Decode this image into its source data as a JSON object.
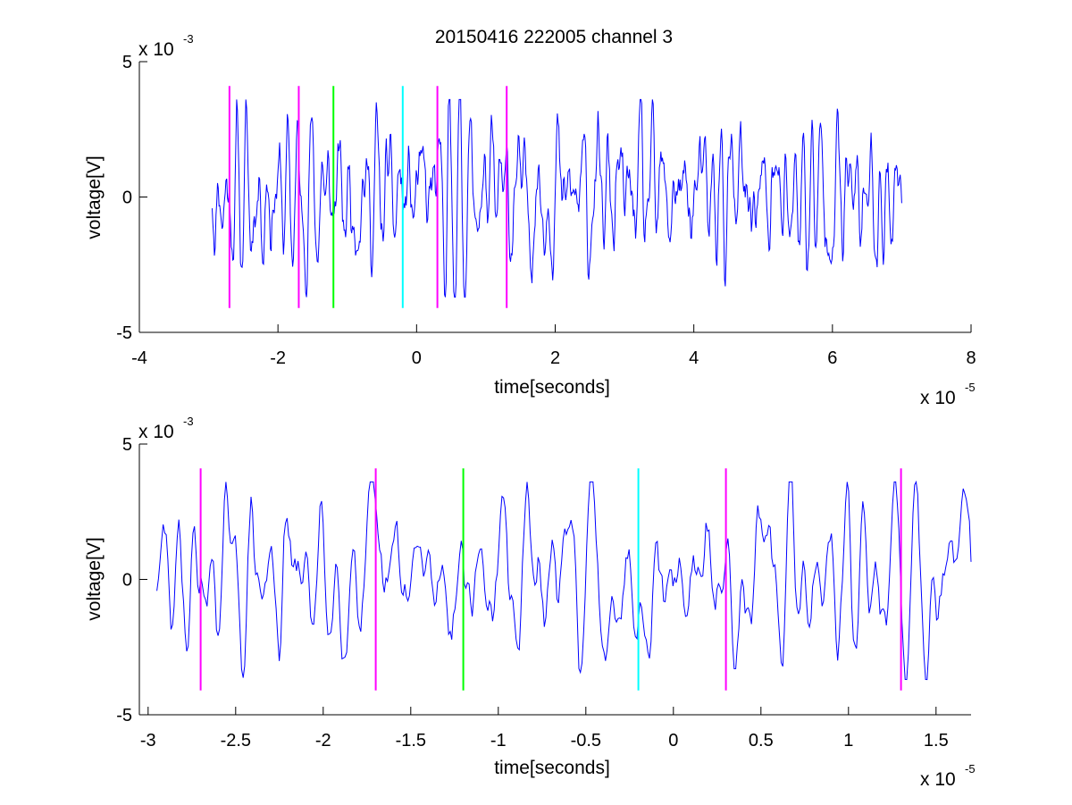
{
  "title": "20150416 222005 channel 3",
  "chart_data": [
    {
      "type": "line",
      "title": "20150416 222005 channel 3",
      "xlabel": "time[seconds]",
      "ylabel": "voltage[V]",
      "x_multiplier_label": "x 10",
      "x_multiplier_exp": "-5",
      "y_multiplier_label": "x 10",
      "y_multiplier_exp": "-3",
      "xlim": [
        -4,
        8
      ],
      "ylim": [
        -5,
        5
      ],
      "xticks": [
        "-4",
        "-2",
        "0",
        "2",
        "4",
        "6",
        "8"
      ],
      "xtick_values": [
        -4,
        -2,
        0,
        2,
        4,
        6,
        8
      ],
      "yticks": [
        "-5",
        "0",
        "5"
      ],
      "ytick_values": [
        -5,
        0,
        5
      ],
      "grid": false,
      "series": [
        {
          "color": "#0000ff",
          "x_start": -2.95,
          "x_end": 7.0,
          "points": 900,
          "seed": 11,
          "amp": 1.05
        }
      ],
      "markers": [
        {
          "x": -2.7,
          "color": "#ff00ff",
          "ymin": -4.1,
          "ymax": 4.1
        },
        {
          "x": -1.7,
          "color": "#ff00ff",
          "ymin": -4.1,
          "ymax": 4.1
        },
        {
          "x": -1.2,
          "color": "#00ff00",
          "ymin": -4.1,
          "ymax": 4.1
        },
        {
          "x": -0.2,
          "color": "#00ffff",
          "ymin": -4.1,
          "ymax": 4.1
        },
        {
          "x": 0.3,
          "color": "#ff00ff",
          "ymin": -4.1,
          "ymax": 4.1
        },
        {
          "x": 1.3,
          "color": "#ff00ff",
          "ymin": -4.1,
          "ymax": 4.1
        }
      ]
    },
    {
      "type": "line",
      "xlabel": "time[seconds]",
      "ylabel": "voltage[V]",
      "x_multiplier_label": "x 10",
      "x_multiplier_exp": "-5",
      "y_multiplier_label": "x 10",
      "y_multiplier_exp": "-3",
      "xlim": [
        -3.05,
        1.7
      ],
      "ylim": [
        -5,
        5
      ],
      "xticks": [
        "-3",
        "-2.5",
        "-2",
        "-1.5",
        "-1",
        "-0.5",
        "0",
        "0.5",
        "1",
        "1.5"
      ],
      "xtick_values": [
        -3,
        -2.5,
        -2,
        -1.5,
        -1,
        -0.5,
        0,
        0.5,
        1,
        1.5
      ],
      "yticks": [
        "-5",
        "0",
        "5"
      ],
      "ytick_values": [
        -5,
        0,
        5
      ],
      "grid": false,
      "series": [
        {
          "color": "#0000ff",
          "x_start": -2.95,
          "x_end": 1.7,
          "points": 520,
          "seed": 29,
          "amp": 1.1
        }
      ],
      "markers": [
        {
          "x": -2.7,
          "color": "#ff00ff",
          "ymin": -4.1,
          "ymax": 4.1
        },
        {
          "x": -1.7,
          "color": "#ff00ff",
          "ymin": -4.1,
          "ymax": 4.1
        },
        {
          "x": -1.2,
          "color": "#00ff00",
          "ymin": -4.1,
          "ymax": 4.1
        },
        {
          "x": -0.2,
          "color": "#00ffff",
          "ymin": -4.1,
          "ymax": 4.1
        },
        {
          "x": 0.3,
          "color": "#ff00ff",
          "ymin": -4.1,
          "ymax": 4.1
        },
        {
          "x": 1.3,
          "color": "#ff00ff",
          "ymin": -4.1,
          "ymax": 4.1
        }
      ]
    }
  ]
}
